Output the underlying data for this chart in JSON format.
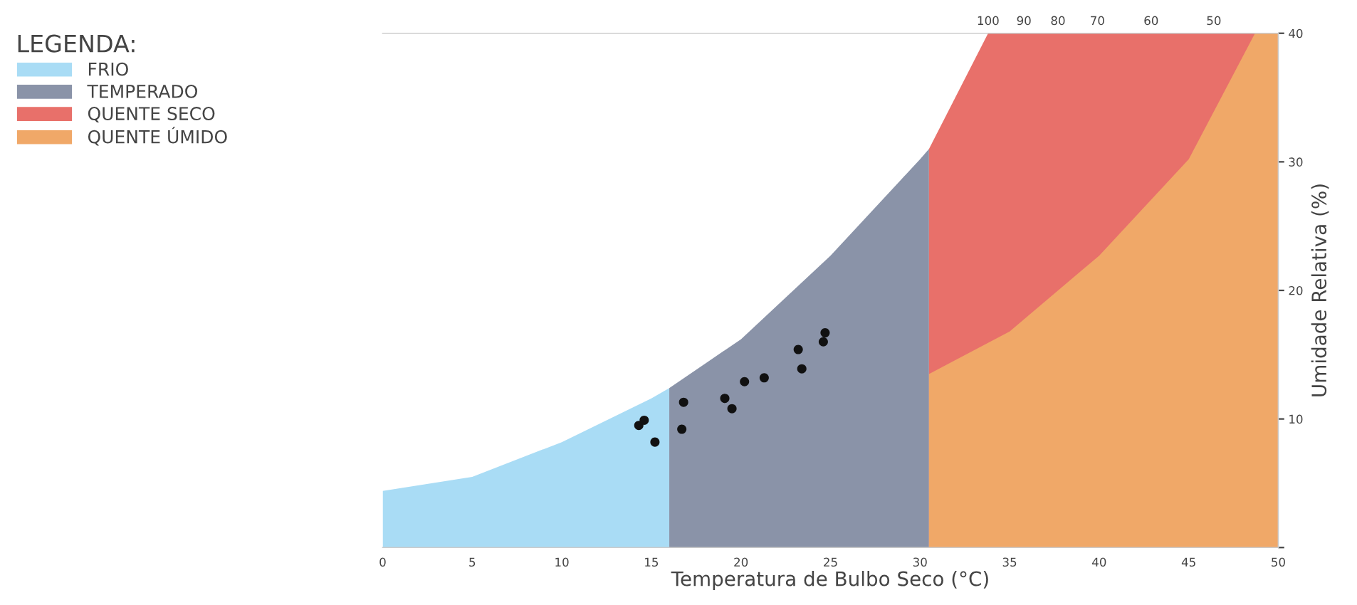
{
  "chart_data": {
    "type": "area",
    "xlabel": "Temperatura de Bulbo Seco (°C)",
    "ylabel": "Umidade Relativa (%)",
    "legend_title": "LEGENDA:",
    "legend": "top left",
    "xlim": [
      0,
      50
    ],
    "xticks": [
      0,
      5,
      10,
      15,
      20,
      25,
      30,
      35,
      40,
      45,
      50
    ],
    "ylim": [
      0,
      40
    ],
    "yticks": [
      {
        "value": 0,
        "label": null
      },
      10,
      20,
      30,
      40
    ],
    "annotations": [
      {
        "text": "100",
        "x": 33.8,
        "y": 40
      },
      {
        "text": "90",
        "x": 35.8,
        "y": 40
      },
      {
        "text": "80",
        "x": 37.7,
        "y": 40
      },
      {
        "text": "70",
        "x": 39.9,
        "y": 40
      },
      {
        "text": "60",
        "x": 42.9,
        "y": 40
      },
      {
        "text": "50",
        "x": 46.4,
        "y": 40
      }
    ],
    "series": [
      {
        "name": "FRIO",
        "color": "#a9dcf5",
        "x": [
          0,
          5,
          10,
          15,
          16
        ],
        "values": [
          4.4,
          5.5,
          8.2,
          11.6,
          12.4
        ]
      },
      {
        "name": "TEMPERADO",
        "color": "#8a93a8",
        "x": [
          16,
          20,
          25,
          30,
          30.5
        ],
        "values": [
          12.4,
          16.2,
          22.7,
          30.2,
          31
        ]
      },
      {
        "name": "QUENTE SECO",
        "color": "#e8706a",
        "x": [
          30.5,
          33.8,
          35,
          40,
          45,
          48.7
        ],
        "values": [
          31,
          40,
          40,
          40,
          40,
          40
        ]
      },
      {
        "name": "QUENTE ÚMIDO",
        "color": "#f0a868",
        "x": [
          30.5,
          35,
          40,
          45,
          48.7,
          50
        ],
        "values": [
          13.5,
          16.8,
          22.7,
          30.2,
          40,
          40
        ]
      },
      {
        "type": "scatter",
        "color": "#111111",
        "marker": "circle",
        "x": [
          14.3,
          14.6,
          15.2,
          16.8,
          16.7,
          19.1,
          19.5,
          20.2,
          21.3,
          23.2,
          23.4,
          24.6,
          24.7
        ],
        "values": [
          9.5,
          9.9,
          8.2,
          11.3,
          9.2,
          11.6,
          10.8,
          12.9,
          13.2,
          15.4,
          13.9,
          16.0,
          16.7
        ]
      }
    ]
  }
}
